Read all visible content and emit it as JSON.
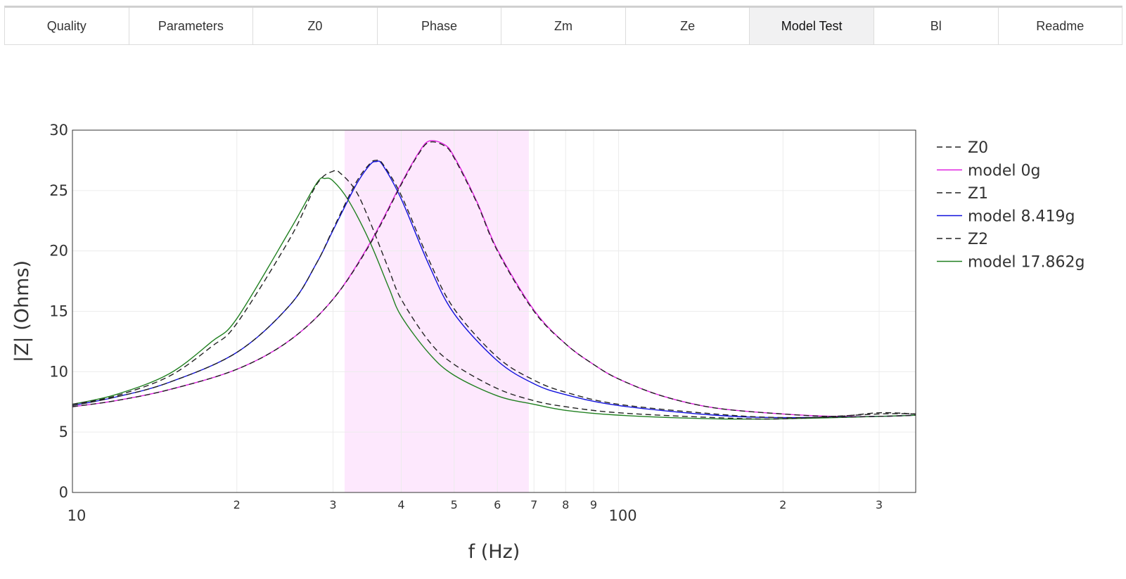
{
  "tabs": [
    {
      "label": "Quality",
      "active": false
    },
    {
      "label": "Parameters",
      "active": false
    },
    {
      "label": "Z0",
      "active": false
    },
    {
      "label": "Phase",
      "active": false
    },
    {
      "label": "Zm",
      "active": false
    },
    {
      "label": "Ze",
      "active": false
    },
    {
      "label": "Model Test",
      "active": true
    },
    {
      "label": "Bl",
      "active": false
    },
    {
      "label": "Readme",
      "active": false
    }
  ],
  "chart_data": {
    "type": "line",
    "xlabel": "f (Hz)",
    "ylabel": "|Z| (Ohms)",
    "xscale": "log",
    "xlim": [
      10,
      350
    ],
    "ylim": [
      0,
      30
    ],
    "grid": true,
    "legend_position": "right",
    "y_ticks": [
      0,
      5,
      10,
      15,
      20,
      25,
      30
    ],
    "x_ticks": [
      {
        "value": 10,
        "label": "10",
        "major": true
      },
      {
        "value": 20,
        "label": "2",
        "major": false
      },
      {
        "value": 30,
        "label": "3",
        "major": false
      },
      {
        "value": 40,
        "label": "4",
        "major": false
      },
      {
        "value": 50,
        "label": "5",
        "major": false
      },
      {
        "value": 60,
        "label": "6",
        "major": false
      },
      {
        "value": 70,
        "label": "7",
        "major": false
      },
      {
        "value": 80,
        "label": "8",
        "major": false
      },
      {
        "value": 90,
        "label": "9",
        "major": false
      },
      {
        "value": 100,
        "label": "100",
        "major": true
      },
      {
        "value": 200,
        "label": "2",
        "major": false
      },
      {
        "value": 300,
        "label": "3",
        "major": false
      }
    ],
    "shaded_band": {
      "x0": 31.5,
      "x1": 68.5,
      "color": "#fde8fd"
    },
    "series": [
      {
        "name": "Z0",
        "color": "#222222",
        "dash": true,
        "x": [
          10,
          12,
          15,
          20,
          25,
          30,
          35,
          40,
          43,
          45,
          48,
          50,
          55,
          60,
          70,
          80,
          90,
          100,
          120,
          150,
          200,
          250,
          300,
          350
        ],
        "y": [
          7.1,
          7.6,
          8.5,
          10.2,
          12.6,
          16.0,
          20.5,
          25.5,
          28.0,
          29.0,
          28.7,
          27.7,
          24.0,
          20.0,
          15.0,
          12.3,
          10.6,
          9.4,
          8.0,
          7.0,
          6.5,
          6.3,
          6.6,
          6.5
        ]
      },
      {
        "name": "model 0g",
        "color": "#e020e0",
        "dash": false,
        "x": [
          10,
          12,
          15,
          20,
          25,
          30,
          35,
          40,
          43,
          45,
          48,
          50,
          55,
          60,
          70,
          80,
          90,
          100,
          120,
          150,
          200,
          250,
          300,
          350
        ],
        "y": [
          7.1,
          7.6,
          8.5,
          10.2,
          12.6,
          16.0,
          20.6,
          25.6,
          28.1,
          29.1,
          28.8,
          27.8,
          24.1,
          20.1,
          15.1,
          12.3,
          10.6,
          9.4,
          8.0,
          7.0,
          6.5,
          6.3,
          6.3,
          6.4
        ]
      },
      {
        "name": "Z1",
        "color": "#222222",
        "dash": true,
        "x": [
          10,
          12,
          15,
          20,
          25,
          28,
          30,
          33,
          35,
          36,
          37,
          40,
          45,
          50,
          60,
          70,
          80,
          100,
          150,
          200,
          300,
          350
        ],
        "y": [
          7.2,
          7.9,
          9.1,
          11.6,
          15.5,
          19.0,
          21.8,
          25.6,
          27.2,
          27.5,
          27.2,
          24.6,
          19.2,
          15.2,
          11.2,
          9.3,
          8.3,
          7.3,
          6.5,
          6.2,
          6.3,
          6.4
        ]
      },
      {
        "name": "model 8.419g",
        "color": "#1010dd",
        "dash": false,
        "x": [
          10,
          12,
          15,
          20,
          25,
          28,
          30,
          33,
          35,
          36,
          37,
          40,
          45,
          50,
          60,
          70,
          80,
          100,
          150,
          200,
          300,
          350
        ],
        "y": [
          7.2,
          7.9,
          9.1,
          11.6,
          15.5,
          19.0,
          21.7,
          25.4,
          27.1,
          27.4,
          27.1,
          24.3,
          18.8,
          14.8,
          10.9,
          9.0,
          8.1,
          7.2,
          6.4,
          6.2,
          6.3,
          6.4
        ]
      },
      {
        "name": "Z2",
        "color": "#222222",
        "dash": true,
        "x": [
          10,
          12,
          15,
          18,
          20,
          25,
          28,
          30,
          31,
          33,
          35,
          38,
          40,
          45,
          50,
          60,
          70,
          80,
          100,
          150,
          200,
          300,
          350
        ],
        "y": [
          7.3,
          8.0,
          9.6,
          12.1,
          14.0,
          21.0,
          25.5,
          26.6,
          26.4,
          25.0,
          22.5,
          18.4,
          16.0,
          12.5,
          10.6,
          8.6,
          7.6,
          7.1,
          6.6,
          6.2,
          6.1,
          6.5,
          6.5
        ]
      },
      {
        "name": "model 17.862g",
        "color": "#208020",
        "dash": false,
        "x": [
          10,
          12,
          15,
          18,
          20,
          25,
          28,
          29,
          30,
          32,
          35,
          38,
          40,
          45,
          50,
          60,
          70,
          80,
          100,
          150,
          200,
          300,
          350
        ],
        "y": [
          7.3,
          8.1,
          9.8,
          12.5,
          14.4,
          21.7,
          25.6,
          26.0,
          25.8,
          24.2,
          20.8,
          16.9,
          14.6,
          11.5,
          9.7,
          8.0,
          7.3,
          6.8,
          6.4,
          6.1,
          6.1,
          6.3,
          6.4
        ]
      }
    ]
  }
}
